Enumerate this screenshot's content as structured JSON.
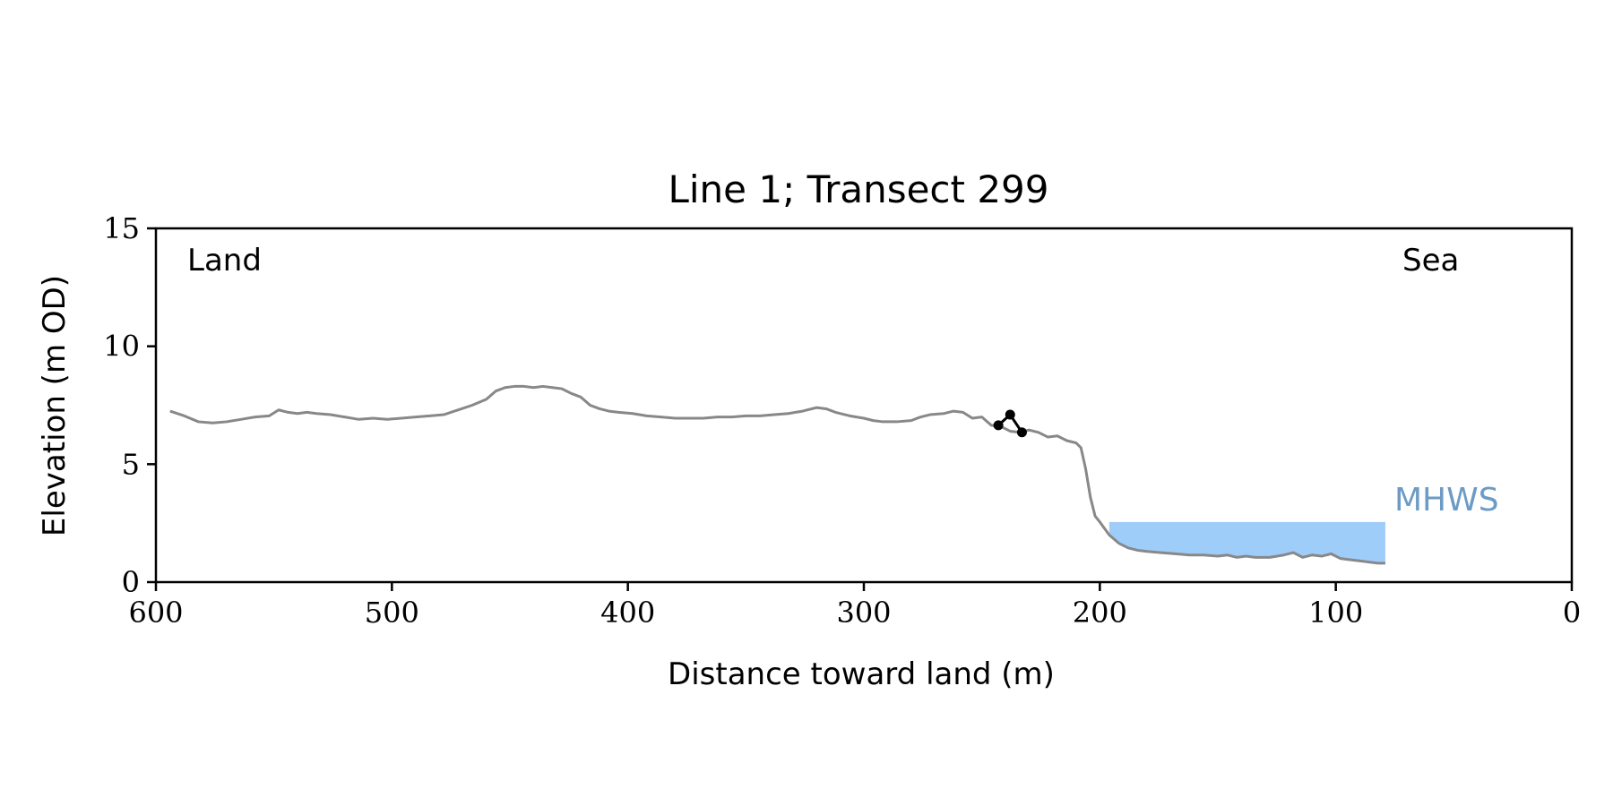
{
  "chart_data": {
    "type": "line",
    "title": "Line 1; Transect 299",
    "xlabel": "Distance toward land (m)",
    "ylabel": "Elevation (m OD)",
    "xlim": [
      600,
      0
    ],
    "ylim": [
      0,
      15
    ],
    "x_ticks": [
      600,
      500,
      400,
      300,
      200,
      100,
      0
    ],
    "y_ticks": [
      0,
      5,
      10,
      15
    ],
    "x_tick_labels": [
      "600",
      "500",
      "400",
      "300",
      "200",
      "100",
      "0"
    ],
    "y_tick_labels": [
      "0",
      "5",
      "10",
      "15"
    ],
    "grid": false,
    "annotations": {
      "land": "Land",
      "sea": "Sea",
      "mhws": "MHWS"
    },
    "mhws_band": {
      "x_start": 196,
      "x_end": 79,
      "level": 2.55
    },
    "colors": {
      "profile": "#888888",
      "marker": "#000000",
      "mhws_fill": "#9fcdfa",
      "mhws_text": "#6c9bc6"
    },
    "series": [
      {
        "key": "profile",
        "x": [
          594,
          588,
          582,
          576,
          570,
          564,
          558,
          552,
          548,
          544,
          540,
          536,
          532,
          526,
          520,
          514,
          508,
          502,
          496,
          490,
          484,
          478,
          472,
          466,
          460,
          456,
          452,
          448,
          444,
          440,
          436,
          432,
          428,
          424,
          420,
          416,
          412,
          408,
          404,
          398,
          392,
          386,
          380,
          374,
          368,
          362,
          356,
          350,
          344,
          338,
          332,
          326,
          320,
          316,
          312,
          306,
          300,
          296,
          292,
          286,
          280,
          276,
          272,
          266,
          262,
          258,
          254,
          250,
          246,
          242,
          238,
          234,
          230,
          226,
          222,
          218,
          214,
          210,
          208,
          206,
          204,
          202,
          200,
          196,
          192,
          188,
          184,
          180,
          174,
          168,
          162,
          156,
          150,
          146,
          142,
          138,
          134,
          128,
          122,
          118,
          114,
          110,
          106,
          102,
          98,
          94,
          90,
          86,
          82,
          79
        ],
        "y": [
          7.25,
          7.05,
          6.8,
          6.75,
          6.8,
          6.9,
          7.0,
          7.05,
          7.3,
          7.2,
          7.15,
          7.2,
          7.15,
          7.1,
          7.0,
          6.9,
          6.95,
          6.9,
          6.95,
          7.0,
          7.05,
          7.1,
          7.3,
          7.5,
          7.75,
          8.1,
          8.25,
          8.3,
          8.3,
          8.25,
          8.3,
          8.25,
          8.2,
          8.0,
          7.85,
          7.5,
          7.35,
          7.25,
          7.2,
          7.15,
          7.05,
          7.0,
          6.95,
          6.95,
          6.95,
          7.0,
          7.0,
          7.05,
          7.05,
          7.1,
          7.15,
          7.25,
          7.4,
          7.35,
          7.2,
          7.05,
          6.95,
          6.85,
          6.8,
          6.8,
          6.85,
          7.0,
          7.1,
          7.15,
          7.25,
          7.2,
          6.95,
          7.0,
          6.65,
          6.6,
          6.4,
          6.35,
          6.45,
          6.35,
          6.15,
          6.2,
          6.0,
          5.9,
          5.7,
          4.8,
          3.6,
          2.8,
          2.55,
          2.0,
          1.65,
          1.45,
          1.35,
          1.3,
          1.25,
          1.2,
          1.15,
          1.15,
          1.1,
          1.15,
          1.05,
          1.1,
          1.05,
          1.05,
          1.15,
          1.25,
          1.05,
          1.15,
          1.1,
          1.2,
          1.0,
          0.95,
          0.9,
          0.85,
          0.8,
          0.8
        ]
      },
      {
        "key": "markers",
        "x": [
          243,
          238,
          233
        ],
        "y": [
          6.65,
          7.1,
          6.35
        ]
      }
    ]
  }
}
